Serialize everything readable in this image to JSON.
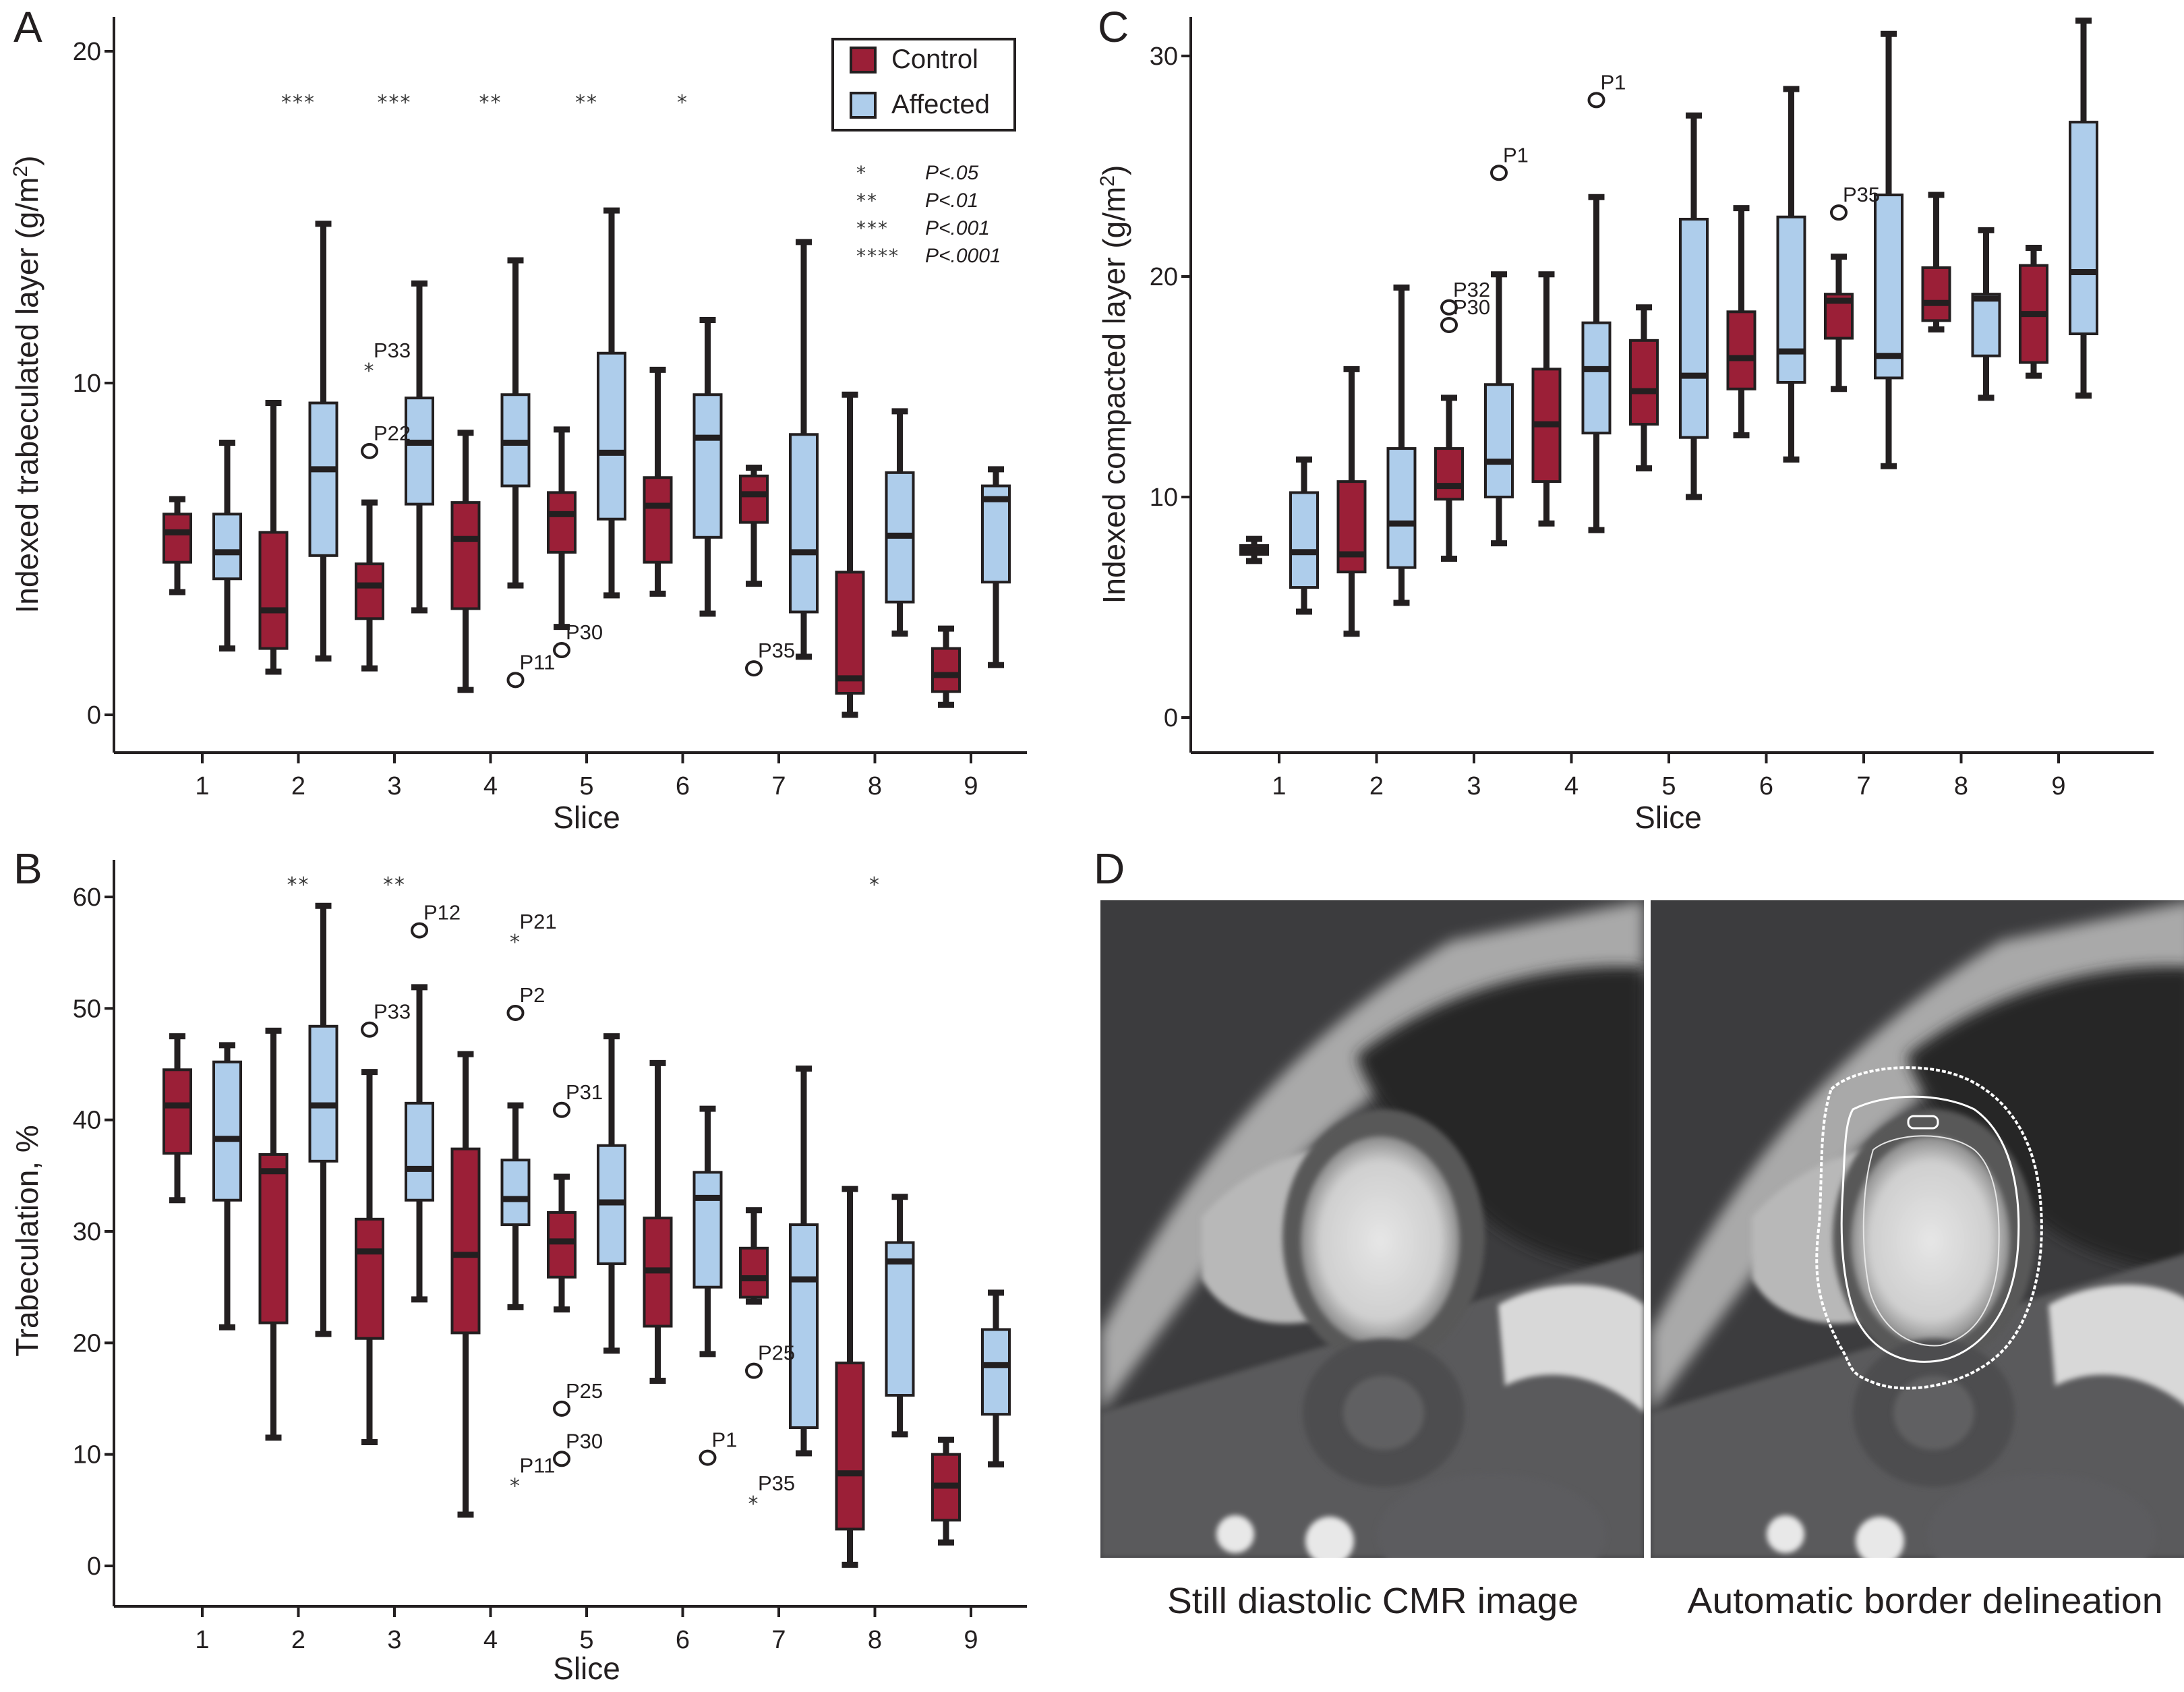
{
  "colors": {
    "control": "#9b1f37",
    "affected": "#aecdeb",
    "ink": "#231f20"
  },
  "legend": {
    "items": [
      {
        "label": "Control",
        "series": "control"
      },
      {
        "label": "Affected",
        "series": "affected"
      }
    ],
    "significance_key": [
      {
        "stars": "*",
        "label": "P<.05"
      },
      {
        "stars": "**",
        "label": "P<.01"
      },
      {
        "stars": "***",
        "label": "P<.001"
      },
      {
        "stars": "****",
        "label": "P<.0001"
      }
    ]
  },
  "chart_data": [
    {
      "panel": "A",
      "type": "boxplot",
      "title": "",
      "xlabel": "Slice",
      "ylabel": "Indexed trabeculated layer (g/m²)",
      "ylim": [
        -1,
        20.5
      ],
      "yticks": [
        0,
        10,
        20
      ],
      "categories": [
        "1",
        "2",
        "3",
        "4",
        "5",
        "6",
        "7",
        "8",
        "9"
      ],
      "legend_position": "top-right",
      "series": [
        {
          "name": "Control",
          "boxes": [
            {
              "min": 3.7,
              "q1": 4.6,
              "median": 5.5,
              "q3": 6.05,
              "max": 6.5
            },
            {
              "min": 1.3,
              "q1": 2.0,
              "median": 3.15,
              "q3": 5.5,
              "max": 9.4
            },
            {
              "min": 1.4,
              "q1": 2.9,
              "median": 3.9,
              "q3": 4.55,
              "max": 6.4
            },
            {
              "min": 0.75,
              "q1": 3.2,
              "median": 5.3,
              "q3": 6.4,
              "max": 8.5
            },
            {
              "min": 2.65,
              "q1": 4.9,
              "median": 6.05,
              "q3": 6.7,
              "max": 8.6
            },
            {
              "min": 3.65,
              "q1": 4.6,
              "median": 6.3,
              "q3": 7.15,
              "max": 10.4
            },
            {
              "min": 3.95,
              "q1": 5.8,
              "median": 6.65,
              "q3": 7.2,
              "max": 7.45
            },
            {
              "min": 0.0,
              "q1": 0.65,
              "median": 1.1,
              "q3": 4.3,
              "max": 9.65
            },
            {
              "min": 0.3,
              "q1": 0.7,
              "median": 1.2,
              "q3": 2.0,
              "max": 2.6
            }
          ]
        },
        {
          "name": "Affected",
          "boxes": [
            {
              "min": 2.0,
              "q1": 4.1,
              "median": 4.9,
              "q3": 6.05,
              "max": 8.2
            },
            {
              "min": 1.7,
              "q1": 4.8,
              "median": 7.4,
              "q3": 9.4,
              "max": 14.8
            },
            {
              "min": 3.15,
              "q1": 6.35,
              "median": 8.2,
              "q3": 9.55,
              "max": 13.0
            },
            {
              "min": 3.9,
              "q1": 6.9,
              "median": 8.2,
              "q3": 9.65,
              "max": 13.7
            },
            {
              "min": 3.6,
              "q1": 5.9,
              "median": 7.9,
              "q3": 10.9,
              "max": 15.2
            },
            {
              "min": 3.05,
              "q1": 5.35,
              "median": 8.35,
              "q3": 9.65,
              "max": 11.9
            },
            {
              "min": 1.75,
              "q1": 3.1,
              "median": 4.9,
              "q3": 8.45,
              "max": 14.25
            },
            {
              "min": 2.45,
              "q1": 3.4,
              "median": 5.4,
              "q3": 7.3,
              "max": 9.15
            },
            {
              "min": 1.5,
              "q1": 4.0,
              "median": 6.5,
              "q3": 6.9,
              "max": 7.4
            }
          ]
        }
      ],
      "outliers": [
        {
          "label": "P33",
          "slice": 3,
          "series": "Control",
          "value": 10.45,
          "marker": "asterisk"
        },
        {
          "label": "P22",
          "slice": 3,
          "series": "Control",
          "value": 7.95,
          "marker": "circle"
        },
        {
          "label": "P11",
          "slice": 4,
          "series": "Affected",
          "value": 1.05,
          "marker": "circle"
        },
        {
          "label": "P30",
          "slice": 5,
          "series": "Control",
          "value": 1.95,
          "marker": "circle"
        },
        {
          "label": "P35",
          "slice": 7,
          "series": "Control",
          "value": 1.4,
          "marker": "circle"
        }
      ],
      "significance": [
        {
          "slice": 2,
          "stars": "***"
        },
        {
          "slice": 3,
          "stars": "***"
        },
        {
          "slice": 4,
          "stars": "**"
        },
        {
          "slice": 5,
          "stars": "**"
        },
        {
          "slice": 6,
          "stars": "*"
        }
      ]
    },
    {
      "panel": "B",
      "type": "boxplot",
      "title": "",
      "xlabel": "Slice",
      "ylabel": "Trabeculation, %",
      "ylim": [
        -3,
        63
      ],
      "yticks": [
        0,
        10,
        20,
        30,
        40,
        50,
        60
      ],
      "categories": [
        "1",
        "2",
        "3",
        "4",
        "5",
        "6",
        "7",
        "8",
        "9"
      ],
      "series": [
        {
          "name": "Control",
          "boxes": [
            {
              "min": 32.8,
              "q1": 37.0,
              "median": 41.3,
              "q3": 44.5,
              "max": 47.5
            },
            {
              "min": 11.5,
              "q1": 21.8,
              "median": 35.4,
              "q3": 36.9,
              "max": 48.0
            },
            {
              "min": 11.1,
              "q1": 20.4,
              "median": 28.2,
              "q3": 31.1,
              "max": 44.3
            },
            {
              "min": 4.6,
              "q1": 20.9,
              "median": 27.9,
              "q3": 37.4,
              "max": 45.9
            },
            {
              "min": 23.0,
              "q1": 25.9,
              "median": 29.1,
              "q3": 31.7,
              "max": 34.9
            },
            {
              "min": 16.6,
              "q1": 21.5,
              "median": 26.5,
              "q3": 31.2,
              "max": 45.1
            },
            {
              "min": 23.7,
              "q1": 24.1,
              "median": 25.8,
              "q3": 28.5,
              "max": 31.9
            },
            {
              "min": 0.1,
              "q1": 3.3,
              "median": 8.3,
              "q3": 18.2,
              "max": 33.8
            },
            {
              "min": 2.1,
              "q1": 4.1,
              "median": 7.2,
              "q3": 10.0,
              "max": 11.3
            }
          ]
        },
        {
          "name": "Affected",
          "boxes": [
            {
              "min": 21.4,
              "q1": 32.8,
              "median": 38.3,
              "q3": 45.2,
              "max": 46.7
            },
            {
              "min": 20.8,
              "q1": 36.3,
              "median": 41.3,
              "q3": 48.4,
              "max": 59.2
            },
            {
              "min": 23.9,
              "q1": 32.8,
              "median": 35.6,
              "q3": 41.5,
              "max": 51.9
            },
            {
              "min": 23.2,
              "q1": 30.6,
              "median": 32.9,
              "q3": 36.4,
              "max": 41.3
            },
            {
              "min": 19.3,
              "q1": 27.1,
              "median": 32.6,
              "q3": 37.7,
              "max": 47.5
            },
            {
              "min": 19.0,
              "q1": 25.0,
              "median": 33.0,
              "q3": 35.3,
              "max": 41.0
            },
            {
              "min": 10.1,
              "q1": 12.4,
              "median": 25.7,
              "q3": 30.6,
              "max": 44.6
            },
            {
              "min": 11.8,
              "q1": 15.3,
              "median": 27.3,
              "q3": 29.0,
              "max": 33.1
            },
            {
              "min": 9.1,
              "q1": 13.6,
              "median": 18.0,
              "q3": 21.2,
              "max": 24.5
            }
          ]
        }
      ],
      "outliers": [
        {
          "label": "P33",
          "slice": 3,
          "series": "Control",
          "value": 48.1,
          "marker": "circle"
        },
        {
          "label": "P12",
          "slice": 3,
          "series": "Affected",
          "value": 57.0,
          "marker": "circle"
        },
        {
          "label": "P21",
          "slice": 4,
          "series": "Affected",
          "value": 56.2,
          "marker": "asterisk"
        },
        {
          "label": "P2",
          "slice": 4,
          "series": "Affected",
          "value": 49.6,
          "marker": "circle"
        },
        {
          "label": "P11",
          "slice": 4,
          "series": "Affected",
          "value": 7.4,
          "marker": "asterisk"
        },
        {
          "label": "P31",
          "slice": 5,
          "series": "Control",
          "value": 40.9,
          "marker": "circle"
        },
        {
          "label": "P25",
          "slice": 5,
          "series": "Control",
          "value": 14.1,
          "marker": "circle"
        },
        {
          "label": "P30",
          "slice": 5,
          "series": "Control",
          "value": 9.6,
          "marker": "circle"
        },
        {
          "label": "P1",
          "slice": 6,
          "series": "Affected",
          "value": 9.7,
          "marker": "circle"
        },
        {
          "label": "P25",
          "slice": 7,
          "series": "Control",
          "value": 17.5,
          "marker": "circle"
        },
        {
          "label": "P35",
          "slice": 7,
          "series": "Control",
          "value": 5.8,
          "marker": "asterisk"
        }
      ],
      "significance": [
        {
          "slice": 2,
          "stars": "**"
        },
        {
          "slice": 3,
          "stars": "**"
        },
        {
          "slice": 8,
          "stars": "*"
        }
      ]
    },
    {
      "panel": "C",
      "type": "boxplot",
      "title": "",
      "xlabel": "Slice",
      "ylabel": "Indexed compacted layer (g/m²)",
      "ylim": [
        -1.6,
        32
      ],
      "yticks": [
        0,
        10,
        20,
        30
      ],
      "categories": [
        "1",
        "2",
        "3",
        "4",
        "5",
        "6",
        "7",
        "8",
        "9"
      ],
      "series": [
        {
          "name": "Control",
          "boxes": [
            {
              "min": 7.1,
              "q1": 7.4,
              "median": 7.6,
              "q3": 7.8,
              "max": 8.1
            },
            {
              "min": 3.8,
              "q1": 6.6,
              "median": 7.4,
              "q3": 10.7,
              "max": 15.8
            },
            {
              "min": 7.2,
              "q1": 9.9,
              "median": 10.5,
              "q3": 12.2,
              "max": 14.5
            },
            {
              "min": 8.8,
              "q1": 10.7,
              "median": 13.3,
              "q3": 15.8,
              "max": 20.1
            },
            {
              "min": 11.3,
              "q1": 13.3,
              "median": 14.8,
              "q3": 17.1,
              "max": 18.6
            },
            {
              "min": 12.8,
              "q1": 14.9,
              "median": 16.3,
              "q3": 18.4,
              "max": 23.1
            },
            {
              "min": 14.9,
              "q1": 17.2,
              "median": 18.9,
              "q3": 19.2,
              "max": 20.9
            },
            {
              "min": 17.6,
              "q1": 18.0,
              "median": 18.8,
              "q3": 20.4,
              "max": 23.7
            },
            {
              "min": 15.5,
              "q1": 16.1,
              "median": 18.3,
              "q3": 20.5,
              "max": 21.3
            }
          ]
        },
        {
          "name": "Affected",
          "boxes": [
            {
              "min": 4.8,
              "q1": 5.9,
              "median": 7.5,
              "q3": 10.2,
              "max": 11.7
            },
            {
              "min": 5.2,
              "q1": 6.8,
              "median": 8.8,
              "q3": 12.2,
              "max": 19.5
            },
            {
              "min": 7.9,
              "q1": 10.0,
              "median": 11.6,
              "q3": 15.1,
              "max": 20.1
            },
            {
              "min": 8.5,
              "q1": 12.9,
              "median": 15.8,
              "q3": 17.9,
              "max": 23.6
            },
            {
              "min": 10.0,
              "q1": 12.7,
              "median": 15.5,
              "q3": 22.6,
              "max": 27.3
            },
            {
              "min": 11.7,
              "q1": 15.2,
              "median": 16.6,
              "q3": 22.7,
              "max": 28.5
            },
            {
              "min": 11.4,
              "q1": 15.4,
              "median": 16.4,
              "q3": 23.7,
              "max": 31.0
            },
            {
              "min": 14.5,
              "q1": 16.4,
              "median": 19.0,
              "q3": 19.2,
              "max": 22.1
            },
            {
              "min": 14.6,
              "q1": 17.4,
              "median": 20.2,
              "q3": 27.0,
              "max": 31.6
            }
          ]
        }
      ],
      "outliers": [
        {
          "label": "P1",
          "slice": 3,
          "series": "Affected",
          "value": 24.7,
          "marker": "circle"
        },
        {
          "label": "P1",
          "slice": 4,
          "series": "Affected",
          "value": 28.0,
          "marker": "circle"
        },
        {
          "label": "P32",
          "slice": 3,
          "series": "Control",
          "value": 18.6,
          "marker": "circle"
        },
        {
          "label": "P30",
          "slice": 3,
          "series": "Control",
          "value": 17.8,
          "marker": "circle"
        },
        {
          "label": "P35",
          "slice": 7,
          "series": "Control",
          "value": 22.9,
          "marker": "circle"
        }
      ],
      "significance": []
    }
  ],
  "panel_d": {
    "label": "D",
    "images": [
      {
        "caption": "Still diastolic CMR image",
        "overlay": false
      },
      {
        "caption": "Automatic border delineation",
        "overlay": true
      }
    ]
  }
}
